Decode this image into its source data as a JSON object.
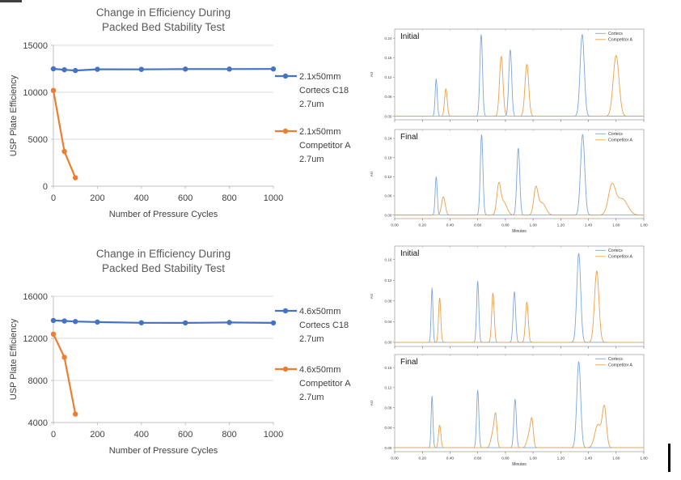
{
  "chart_data": [
    {
      "id": "efficiency-2-1mm",
      "type": "line",
      "title_lines": [
        "Change in Efficiency During",
        "Packed Bed Stability Test"
      ],
      "xlabel": "Number of Pressure Cycles",
      "ylabel": "USP Plate Efficiency",
      "xlim": [
        0,
        1000
      ],
      "ylim": [
        0,
        15000
      ],
      "xticks": [
        0,
        200,
        400,
        600,
        800,
        1000
      ],
      "yticks": [
        0,
        5000,
        10000,
        15000
      ],
      "grid": "horizontal",
      "legend_position": "right",
      "title_color": "#595959",
      "axis_text_color": "#404040",
      "series": [
        {
          "name_lines": [
            "2.1x50mm",
            "Cortecs C18",
            "2.7um"
          ],
          "color": "#4472C4",
          "x": [
            0,
            50,
            100,
            200,
            400,
            600,
            800,
            1000
          ],
          "y": [
            12500,
            12400,
            12320,
            12450,
            12440,
            12470,
            12470,
            12480
          ]
        },
        {
          "name_lines": [
            "2.1x50mm",
            "Competitor A",
            "2.7um"
          ],
          "color": "#ED7D31",
          "x": [
            0,
            50,
            100
          ],
          "y": [
            10200,
            3700,
            900
          ]
        }
      ]
    },
    {
      "id": "efficiency-4-6mm",
      "type": "line",
      "title_lines": [
        "Change in Efficiency During",
        "Packed Bed Stability Test"
      ],
      "xlabel": "Number of  Pressure Cycles",
      "ylabel": "USP Plate Efficiency",
      "xlim": [
        0,
        1000
      ],
      "ylim": [
        4000,
        16000
      ],
      "xticks": [
        0,
        200,
        400,
        600,
        800,
        1000
      ],
      "yticks": [
        4000,
        8000,
        12000,
        16000
      ],
      "grid": "horizontal",
      "legend_position": "right",
      "title_color": "#595959",
      "axis_text_color": "#404040",
      "series": [
        {
          "name_lines": [
            "4.6x50mm",
            "Cortecs C18",
            "2.7um"
          ],
          "color": "#4472C4",
          "x": [
            0,
            50,
            100,
            200,
            400,
            600,
            800,
            1000
          ],
          "y": [
            13700,
            13650,
            13600,
            13550,
            13480,
            13470,
            13510,
            13470
          ]
        },
        {
          "name_lines": [
            "4.6x50mm",
            "Competitor A",
            "2.7um"
          ],
          "color": "#ED7D31",
          "x": [
            0,
            50,
            100
          ],
          "y": [
            12400,
            10200,
            4800
          ]
        }
      ]
    },
    {
      "id": "chromatograms-2-1mm",
      "type": "chromatogram-group",
      "xlabel": "Minutes",
      "ylabel": "AU",
      "xlim": [
        0,
        1.8
      ],
      "xticks": [
        0.0,
        0.2,
        0.4,
        0.6,
        0.8,
        1.0,
        1.2,
        1.4,
        1.6,
        1.8
      ],
      "yticks": [
        0.0,
        0.06,
        0.12,
        0.18,
        0.24
      ],
      "display_ylim": [
        -0.011,
        0.268
      ],
      "legend": [
        "Cortecs",
        "Competitor A"
      ],
      "colors": [
        "#7CA6DC",
        "#E8A04B"
      ],
      "panels": [
        {
          "label": "Initial",
          "traces": [
            {
              "name": "Cortecs",
              "peaks": [
                [
                  0.3,
                  0.115,
                  0.0075
                ],
                [
                  0.625,
                  0.252,
                  0.0095
                ],
                [
                  0.835,
                  0.205,
                  0.0105
                ],
                [
                  1.355,
                  0.252,
                  0.015
                ]
              ]
            },
            {
              "name": "Competitor A",
              "peaks": [
                [
                  0.37,
                  0.085,
                  0.0095
                ],
                [
                  0.77,
                  0.185,
                  0.0125
                ],
                [
                  0.955,
                  0.16,
                  0.0135
                ],
                [
                  1.6,
                  0.187,
                  0.021
                ]
              ]
            }
          ]
        },
        {
          "label": "Final",
          "traces": [
            {
              "name": "Cortecs",
              "peaks": [
                [
                  0.3,
                  0.12,
                  0.0075
                ],
                [
                  0.628,
                  0.253,
                  0.0095
                ],
                [
                  0.893,
                  0.21,
                  0.0105
                ],
                [
                  1.358,
                  0.253,
                  0.015
                ]
              ]
            },
            {
              "name": "Competitor A",
              "peaks": [
                [
                  0.352,
                  0.057,
                  0.013
                ],
                [
                  0.752,
                  0.09,
                  0.014
                ],
                [
                  0.788,
                  0.04,
                  0.023
                ],
                [
                  1.02,
                  0.082,
                  0.015
                ],
                [
                  1.065,
                  0.038,
                  0.026
                ],
                [
                  1.57,
                  0.092,
                  0.026
                ],
                [
                  1.645,
                  0.05,
                  0.038
                ]
              ]
            }
          ]
        }
      ]
    },
    {
      "id": "chromatograms-4-6mm",
      "type": "chromatogram-group",
      "xlabel": "Minutes",
      "ylabel": "AU",
      "xlim": [
        0,
        1.8
      ],
      "xticks": [
        0.0,
        0.2,
        0.4,
        0.6,
        0.8,
        1.0,
        1.2,
        1.4,
        1.6,
        1.8
      ],
      "yticks": [
        0.0,
        0.04,
        0.08,
        0.12,
        0.16
      ],
      "display_ylim": [
        -0.008,
        0.186
      ],
      "legend": [
        "Cortecs",
        "Competitor A"
      ],
      "colors": [
        "#7CA6DC",
        "#E8A04B"
      ],
      "panels": [
        {
          "label": "Initial",
          "traces": [
            {
              "name": "Cortecs",
              "peaks": [
                [
                  0.27,
                  0.105,
                  0.0065
                ],
                [
                  0.6,
                  0.118,
                  0.008
                ],
                [
                  0.865,
                  0.098,
                  0.009
                ],
                [
                  1.33,
                  0.172,
                  0.014
                ]
              ]
            },
            {
              "name": "Competitor A",
              "peaks": [
                [
                  0.325,
                  0.086,
                  0.008
                ],
                [
                  0.71,
                  0.096,
                  0.009
                ],
                [
                  0.955,
                  0.078,
                  0.01
                ],
                [
                  1.46,
                  0.138,
                  0.016
                ]
              ]
            }
          ]
        },
        {
          "label": "Final",
          "traces": [
            {
              "name": "Cortecs",
              "peaks": [
                [
                  0.27,
                  0.103,
                  0.0065
                ],
                [
                  0.6,
                  0.115,
                  0.008
                ],
                [
                  0.87,
                  0.097,
                  0.009
                ],
                [
                  1.33,
                  0.172,
                  0.014
                ]
              ]
            },
            {
              "name": "Competitor A",
              "peaks": [
                [
                  0.325,
                  0.045,
                  0.0085
                ],
                [
                  0.712,
                  0.032,
                  0.015
                ],
                [
                  0.73,
                  0.053,
                  0.0095
                ],
                [
                  0.974,
                  0.028,
                  0.016
                ],
                [
                  0.992,
                  0.044,
                  0.01
                ],
                [
                  1.468,
                  0.046,
                  0.022
                ],
                [
                  1.515,
                  0.08,
                  0.015
                ]
              ]
            }
          ]
        }
      ]
    }
  ]
}
